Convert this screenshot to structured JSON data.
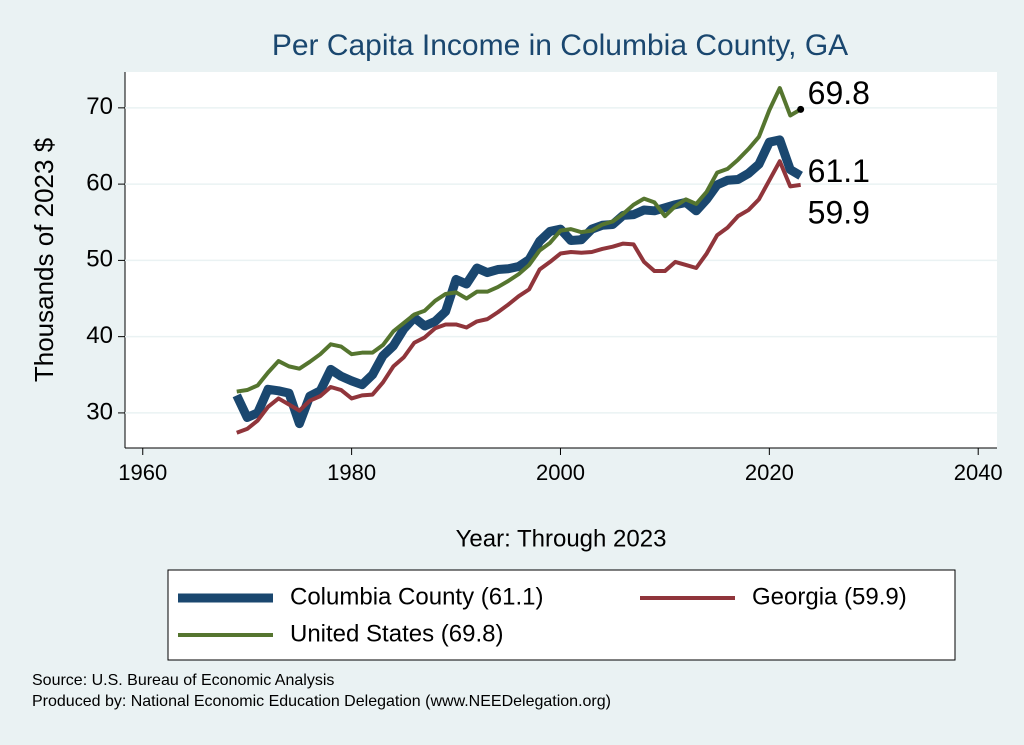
{
  "chart_data": {
    "type": "line",
    "title": "Per Capita Income in Columbia County, GA",
    "xlabel": "Year: Through 2023",
    "ylabel": "Thousands of 2023 $",
    "xlim": [
      1958.3,
      2041.8
    ],
    "ylim": [
      25.4,
      74.7
    ],
    "xticks": [
      1960,
      1980,
      2000,
      2020,
      2040
    ],
    "yticks": [
      30,
      40,
      50,
      60,
      70
    ],
    "grid": true,
    "x": [
      1969,
      1970,
      1971,
      1972,
      1973,
      1974,
      1975,
      1976,
      1977,
      1978,
      1979,
      1980,
      1981,
      1982,
      1983,
      1984,
      1985,
      1986,
      1987,
      1988,
      1989,
      1990,
      1991,
      1992,
      1993,
      1994,
      1995,
      1996,
      1997,
      1998,
      1999,
      2000,
      2001,
      2002,
      2003,
      2004,
      2005,
      2006,
      2007,
      2008,
      2009,
      2010,
      2011,
      2012,
      2013,
      2014,
      2015,
      2016,
      2017,
      2018,
      2019,
      2020,
      2021,
      2022,
      2023
    ],
    "series": [
      {
        "name": "Columbia County (61.1)",
        "color": "#1a476f",
        "width": 9,
        "values": [
          32.3,
          29.4,
          30.0,
          33.1,
          32.9,
          32.6,
          28.6,
          32.2,
          32.9,
          35.7,
          34.8,
          34.2,
          33.7,
          35.0,
          37.5,
          38.8,
          41.0,
          42.5,
          41.4,
          42.0,
          43.3,
          47.5,
          46.9,
          49.0,
          48.4,
          48.8,
          48.9,
          49.2,
          50.1,
          52.5,
          53.8,
          54.1,
          52.6,
          52.7,
          54.1,
          54.6,
          54.7,
          55.9,
          56.0,
          56.6,
          56.5,
          56.9,
          57.3,
          57.6,
          56.5,
          58.0,
          59.9,
          60.5,
          60.6,
          61.4,
          62.6,
          65.5,
          65.8,
          61.9,
          61.1
        ]
      },
      {
        "name": "Georgia (59.9)",
        "color": "#90353b",
        "width": 4,
        "values": [
          27.4,
          27.9,
          29.0,
          30.8,
          31.9,
          31.1,
          30.3,
          31.6,
          32.2,
          33.4,
          33.0,
          31.9,
          32.3,
          32.4,
          34.0,
          36.1,
          37.3,
          39.2,
          39.9,
          41.1,
          41.6,
          41.6,
          41.2,
          42.0,
          42.3,
          43.2,
          44.2,
          45.3,
          46.2,
          48.8,
          49.8,
          50.9,
          51.1,
          51.0,
          51.1,
          51.5,
          51.8,
          52.2,
          52.1,
          49.8,
          48.6,
          48.6,
          49.8,
          49.4,
          49.0,
          50.9,
          53.3,
          54.3,
          55.8,
          56.6,
          58.0,
          60.5,
          63.0,
          59.7,
          59.9
        ]
      },
      {
        "name": "United States (69.8)",
        "color": "#55752f",
        "width": 4,
        "values": [
          32.8,
          33.0,
          33.6,
          35.3,
          36.8,
          36.1,
          35.8,
          36.7,
          37.7,
          39.0,
          38.7,
          37.7,
          37.9,
          37.9,
          38.9,
          40.7,
          41.8,
          42.9,
          43.4,
          44.7,
          45.6,
          45.8,
          45.0,
          45.9,
          45.9,
          46.5,
          47.3,
          48.2,
          49.4,
          51.3,
          52.3,
          53.9,
          54.1,
          53.7,
          53.9,
          54.7,
          55.1,
          56.1,
          57.3,
          58.1,
          57.6,
          55.8,
          57.1,
          58.0,
          57.4,
          59.0,
          61.5,
          62.0,
          63.2,
          64.6,
          66.2,
          69.7,
          72.6,
          69.0,
          69.8
        ]
      }
    ],
    "notes": [
      "Source: U.S. Bureau of Economic Analysis",
      "Produced by: National Economic Education Delegation (www.NEEDelegation.org)"
    ]
  }
}
